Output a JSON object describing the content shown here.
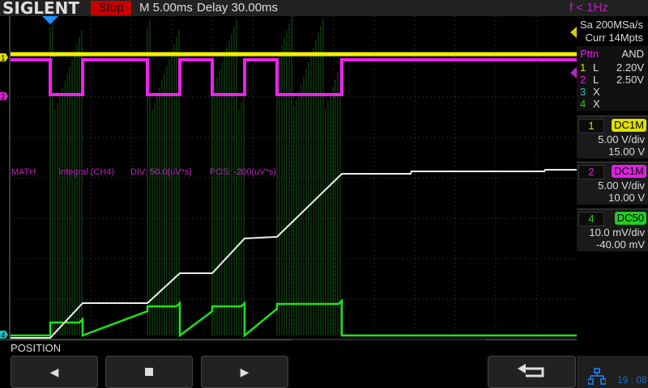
{
  "header": {
    "brand": "SIGLENT",
    "run_state": "Stop",
    "timebase": "M 5.00ms",
    "delay": "Delay 30.00ms",
    "freq_counter": "f < 1Hz"
  },
  "acquisition": {
    "sample_rate": "Sa 200MSa/s",
    "memory": "Curr 14Mpts"
  },
  "trigger": {
    "type": "Pttn",
    "logic": "AND",
    "channels": [
      {
        "num": "1",
        "state": "L",
        "level": "2.20V",
        "color": "#e0e000"
      },
      {
        "num": "2",
        "state": "L",
        "level": "2.50V",
        "color": "#e020e0"
      },
      {
        "num": "3",
        "state": "X",
        "level": "",
        "color": "#20c0c0"
      },
      {
        "num": "4",
        "state": "X",
        "level": "",
        "color": "#20d020"
      }
    ]
  },
  "channels": [
    {
      "num": "1",
      "coupling": "DC1M",
      "scale": "5.00 V/div",
      "offset": "15.00 V",
      "color": "#e0e000"
    },
    {
      "num": "2",
      "coupling": "DC1M",
      "scale": "5.00 V/div",
      "offset": "10.00 V",
      "color": "#e020e0"
    },
    {
      "num": "4",
      "coupling": "DC50",
      "scale": "10.0 mV/div",
      "offset": "-40.00 mV",
      "color": "#20d020"
    }
  ],
  "math": {
    "label": "MATH",
    "function": "Integral (CH4)",
    "div": "DIV: 50.0(uV*s)",
    "pos": "POS: -200(uV*s)",
    "color": "#c020c0"
  },
  "markers": {
    "ch1": "1",
    "ch2": "2",
    "ch4": "4"
  },
  "softkeys": {
    "menu_label": "POSITION",
    "left": "left-arrow-icon",
    "stop": "stop-icon",
    "right": "right-arrow-icon",
    "back": "return-icon"
  },
  "status": {
    "clock": "19 : 08",
    "network_icon": "network-icon"
  }
}
